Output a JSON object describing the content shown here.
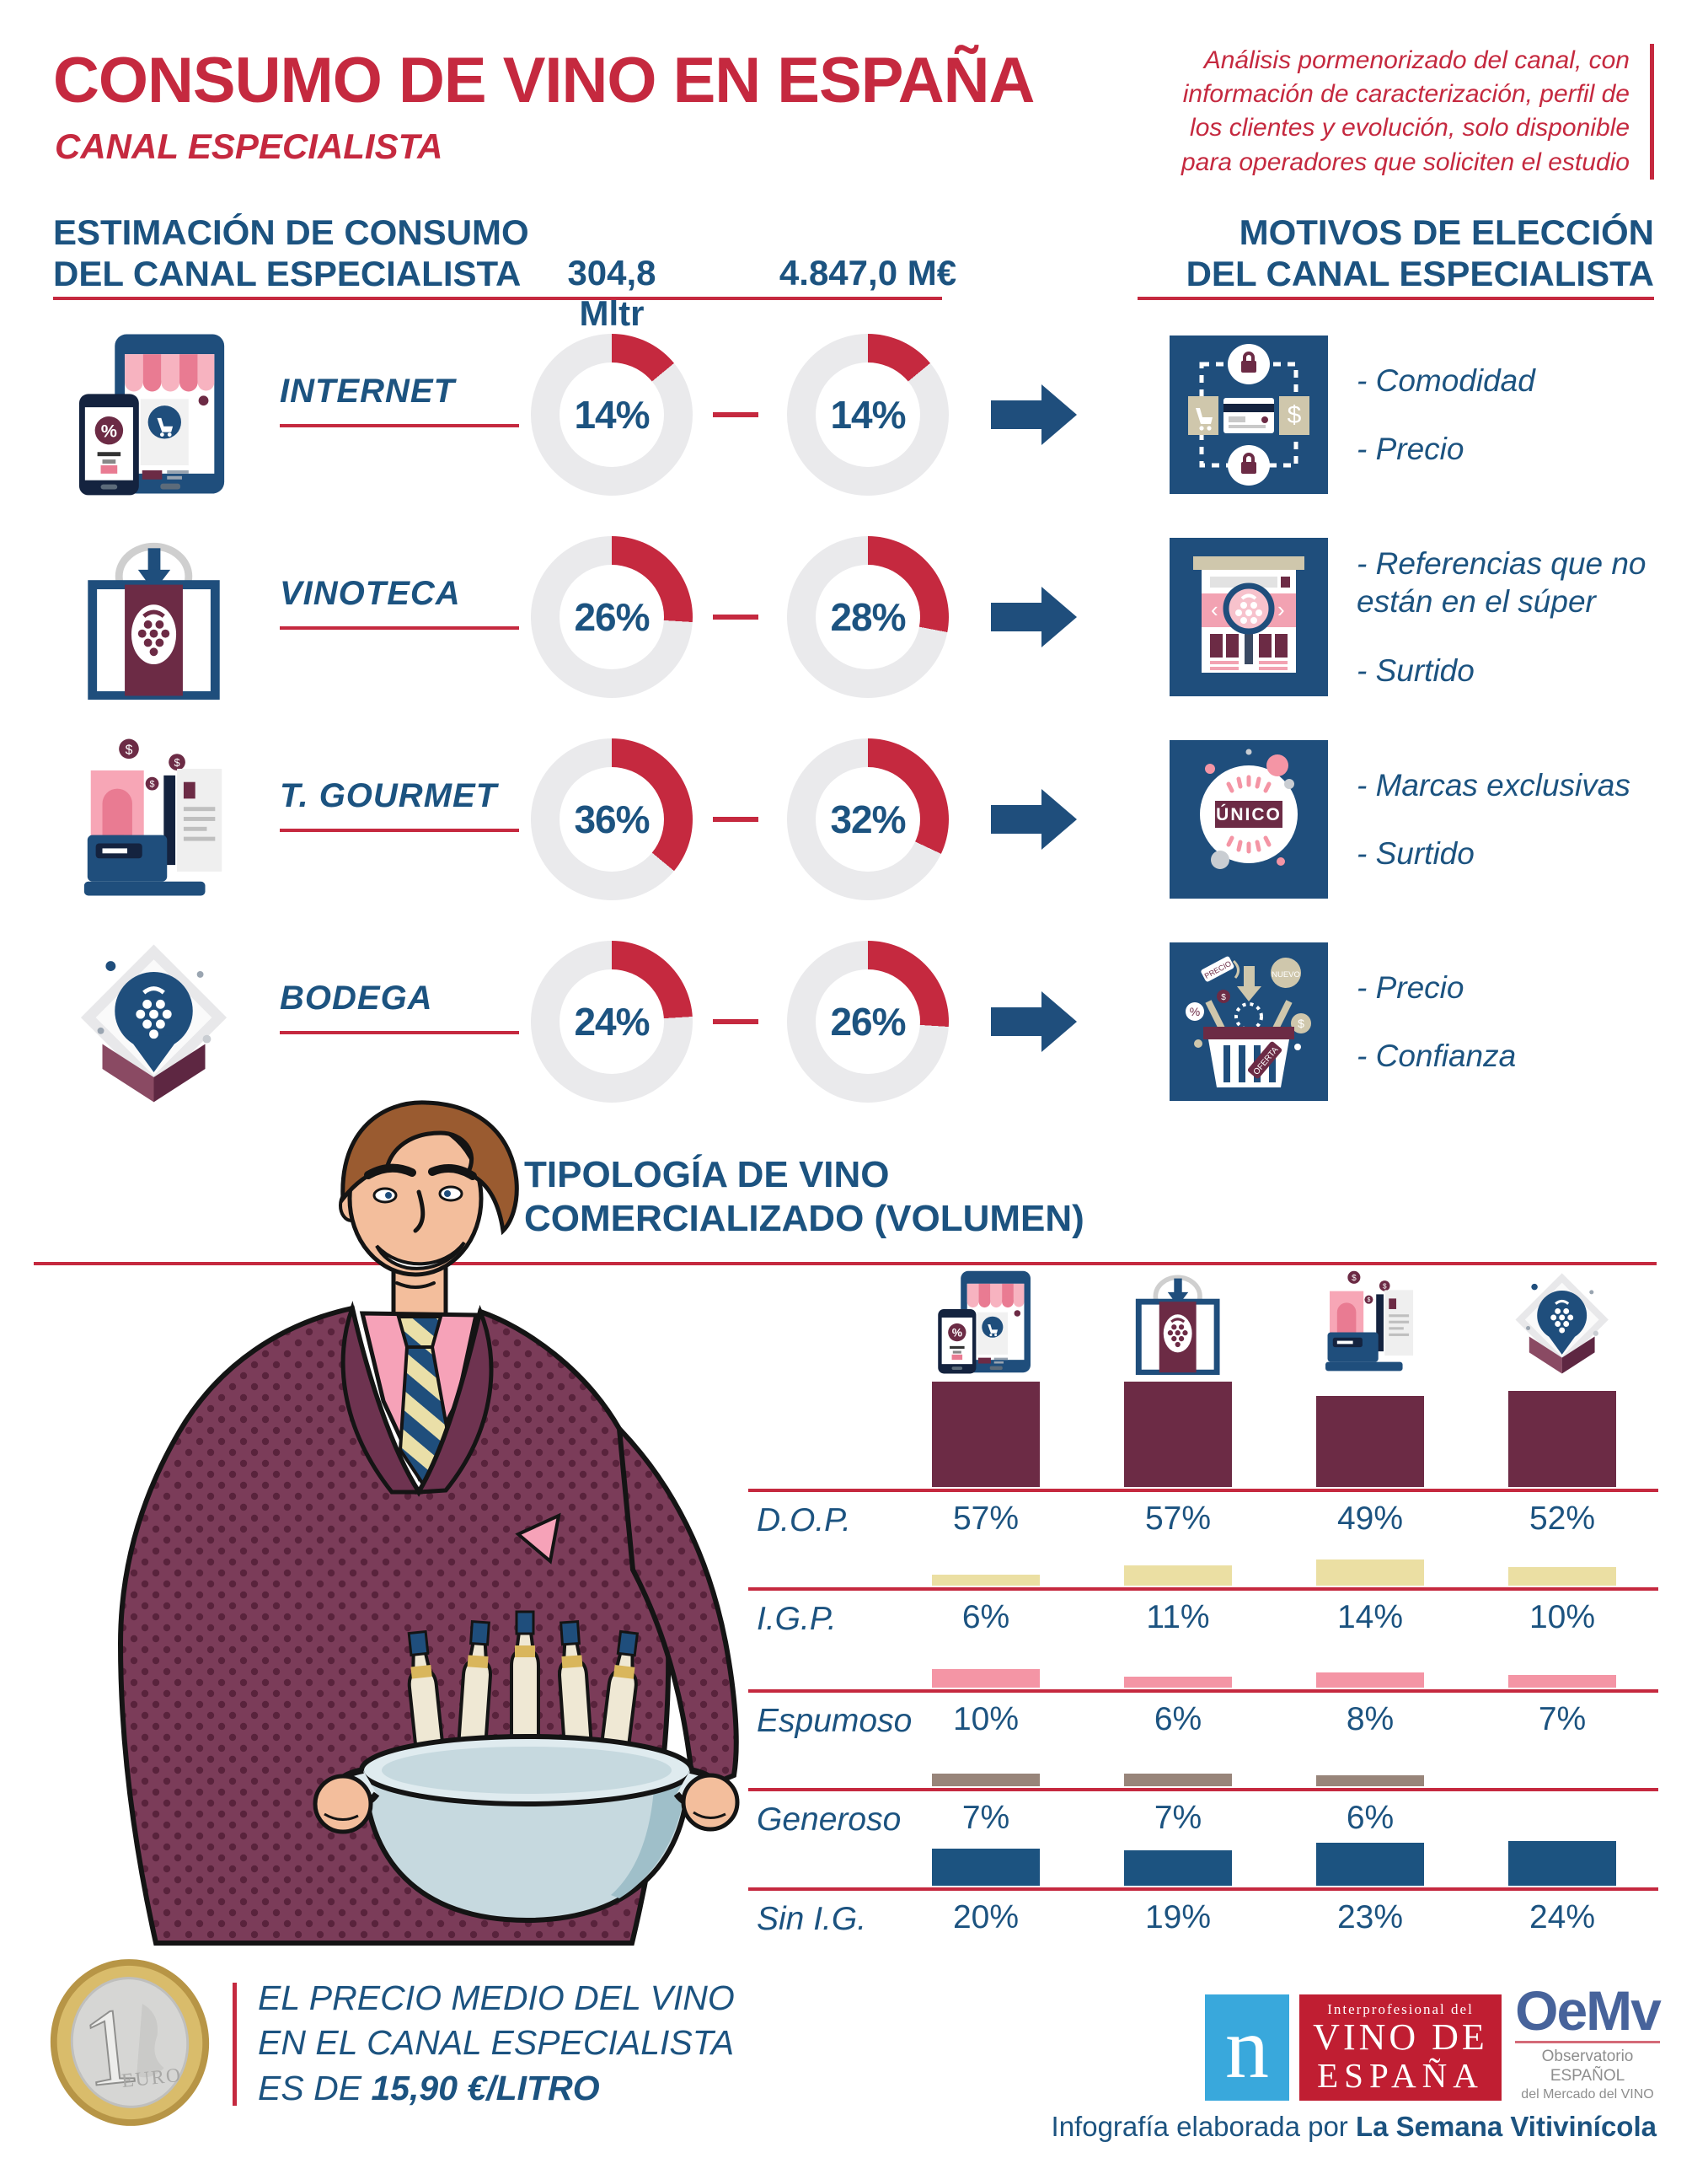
{
  "theme": {
    "red": "#C5293F",
    "blue": "#1C5380",
    "navy": "#1F4E7C",
    "maroon": "#6C2B45",
    "track": "#EAEAEC",
    "tan": "#EBDFA3",
    "pink": "#F495A5",
    "taupe": "#98857A",
    "logo_blue": "#39A8DC",
    "logo_red": "#C01E32",
    "oemv_blue": "#47639B"
  },
  "header": {
    "title": "CONSUMO DE VINO EN ESPAÑA",
    "subtitle": "CANAL ESPECIALISTA",
    "note": "Análisis pormenorizado del canal, con información de caracterización, perfil de los clientes y evolución, solo disponible para operadores que soliciten el estudio"
  },
  "consumption": {
    "heading1": "ESTIMACIÓN DE CONSUMO",
    "heading2": "DEL CANAL ESPECIALISTA",
    "volume_header": "304,8 Mltr",
    "value_header": "4.847,0 M€",
    "rows": [
      {
        "channel": "INTERNET",
        "volume_pct": 14,
        "volume_label": "14%",
        "value_pct": 14,
        "value_label": "14%",
        "motives": [
          "- Comodidad",
          "- Precio"
        ]
      },
      {
        "channel": "VINOTECA",
        "volume_pct": 26,
        "volume_label": "26%",
        "value_pct": 28,
        "value_label": "28%",
        "motives": [
          "- Referencias que no están en el súper",
          "- Surtido"
        ]
      },
      {
        "channel": "T. GOURMET",
        "volume_pct": 36,
        "volume_label": "36%",
        "value_pct": 32,
        "value_label": "32%",
        "motives": [
          "- Marcas exclusivas",
          "- Surtido"
        ]
      },
      {
        "channel": "BODEGA",
        "volume_pct": 24,
        "volume_label": "24%",
        "value_pct": 26,
        "value_label": "26%",
        "motives": [
          "- Precio",
          "- Confianza"
        ]
      }
    ]
  },
  "motives_header": {
    "line1": "MOTIVOS DE ELECCIÓN",
    "line2": "DEL CANAL ESPECIALISTA"
  },
  "icon_labels": {
    "percent": "%",
    "unico": "ÚNICO",
    "precio_tag": "PRECIO",
    "nuevo_tag": "NUEVO",
    "oferta_tag": "OFERTA",
    "dollar": "$"
  },
  "typology": {
    "heading1": "TIPOLOGÍA DE VINO",
    "heading2": "COMERCIALIZADO (VOLUMEN)",
    "rows": [
      {
        "label": "D.O.P.",
        "display": [
          "57%",
          "57%",
          "49%",
          "52%"
        ],
        "numeric": [
          57,
          57,
          49,
          52
        ],
        "color": "#6C2B45"
      },
      {
        "label": "I.G.P.",
        "display": [
          "6%",
          "11%",
          "14%",
          "10%"
        ],
        "numeric": [
          6,
          11,
          14,
          10
        ],
        "color": "#EBDFA3"
      },
      {
        "label": "Espumoso",
        "display": [
          "10%",
          "6%",
          "8%",
          "7%"
        ],
        "numeric": [
          10,
          6,
          8,
          7
        ],
        "color": "#F495A5"
      },
      {
        "label": "Generoso",
        "display": [
          "7%",
          "7%",
          "6%",
          ""
        ],
        "numeric": [
          7,
          7,
          6,
          null
        ],
        "color": "#98857A"
      },
      {
        "label": "Sin I.G.",
        "display": [
          "20%",
          "19%",
          "23%",
          "24%"
        ],
        "numeric": [
          20,
          19,
          23,
          24
        ],
        "color": "#1C5380"
      }
    ]
  },
  "price": {
    "line1": "EL PRECIO MEDIO DEL VINO",
    "line2": "EN EL CANAL ESPECIALISTA",
    "line3_prefix": "ES DE ",
    "line3_value": "15,90 €/LITRO",
    "coin_digit": "1",
    "coin_word": "EURO"
  },
  "footer": {
    "n": "n",
    "ivde_line1": "Interprofesional del",
    "ivde_line2": "VINO DE",
    "ivde_line3": "ESPAÑA",
    "oemv": "OeMv",
    "oemv_sub1": "Observatorio ESPAÑOL",
    "oemv_sub2": "del Mercado del VINO",
    "credit_prefix": "Infografía elaborada por ",
    "credit_name": "La Semana Vitivinícola"
  },
  "chart_data": [
    {
      "type": "pie",
      "variant": "donut-grid",
      "title": "ESTIMACIÓN DE CONSUMO DEL CANAL ESPECIALISTA",
      "categories": [
        "INTERNET",
        "VINOTECA",
        "T. GOURMET",
        "BODEGA"
      ],
      "series": [
        {
          "name": "Volumen (304,8 Mltr)",
          "values": [
            14,
            26,
            36,
            24
          ]
        },
        {
          "name": "Valor (4.847,0 M€)",
          "values": [
            14,
            28,
            32,
            26
          ]
        }
      ],
      "unit": "%"
    },
    {
      "type": "bar",
      "title": "TIPOLOGÍA DE VINO COMERCIALIZADO (VOLUMEN)",
      "categories": [
        "INTERNET",
        "VINOTECA",
        "T. GOURMET",
        "BODEGA"
      ],
      "series": [
        {
          "name": "D.O.P.",
          "values": [
            57,
            57,
            49,
            52
          ]
        },
        {
          "name": "I.G.P.",
          "values": [
            6,
            11,
            14,
            10
          ]
        },
        {
          "name": "Espumoso",
          "values": [
            10,
            6,
            8,
            7
          ]
        },
        {
          "name": "Generoso",
          "values": [
            7,
            7,
            6,
            null
          ]
        },
        {
          "name": "Sin I.G.",
          "values": [
            20,
            19,
            23,
            24
          ]
        }
      ],
      "unit": "%",
      "ylim": [
        0,
        60
      ],
      "grid": false,
      "legend": "row-labels-left"
    }
  ]
}
